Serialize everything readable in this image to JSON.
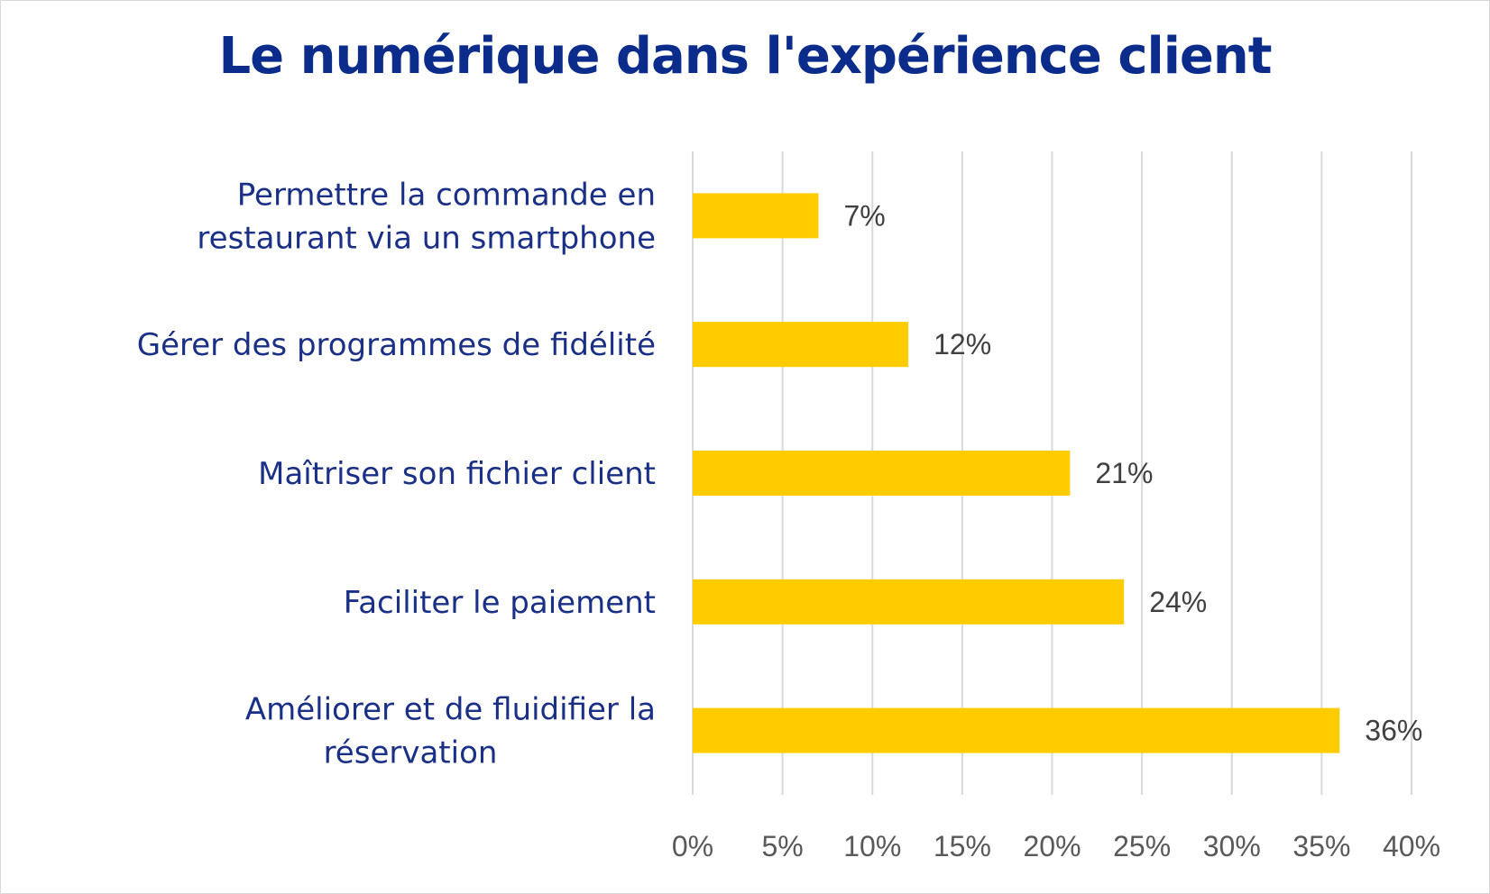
{
  "chart_data": {
    "type": "bar",
    "orientation": "horizontal",
    "title": "Le numérique dans l'expérience client",
    "categories": [
      [
        "Permettre la commande en",
        "restaurant via un smartphone"
      ],
      [
        "Gérer des programmes de fidélité"
      ],
      [
        "Maîtriser son fichier client"
      ],
      [
        "Faciliter le paiement"
      ],
      [
        "Améliorer et de fluidifier la",
        "réservation"
      ]
    ],
    "values": [
      7,
      12,
      21,
      24,
      36
    ],
    "data_labels": [
      "7%",
      "12%",
      "21%",
      "24%",
      "36%"
    ],
    "xlim": [
      0,
      40
    ],
    "x_ticks": [
      0,
      5,
      10,
      15,
      20,
      25,
      30,
      35,
      40
    ],
    "x_tick_labels": [
      "0%",
      "5%",
      "10%",
      "15%",
      "20%",
      "25%",
      "30%",
      "35%",
      "40%"
    ],
    "grid": "vertical",
    "legend": "none",
    "colors": {
      "bar": "#ffcc00",
      "title": "#0b2c8a",
      "category_text": "#1a2f86",
      "grid": "#d9d9d9"
    }
  }
}
